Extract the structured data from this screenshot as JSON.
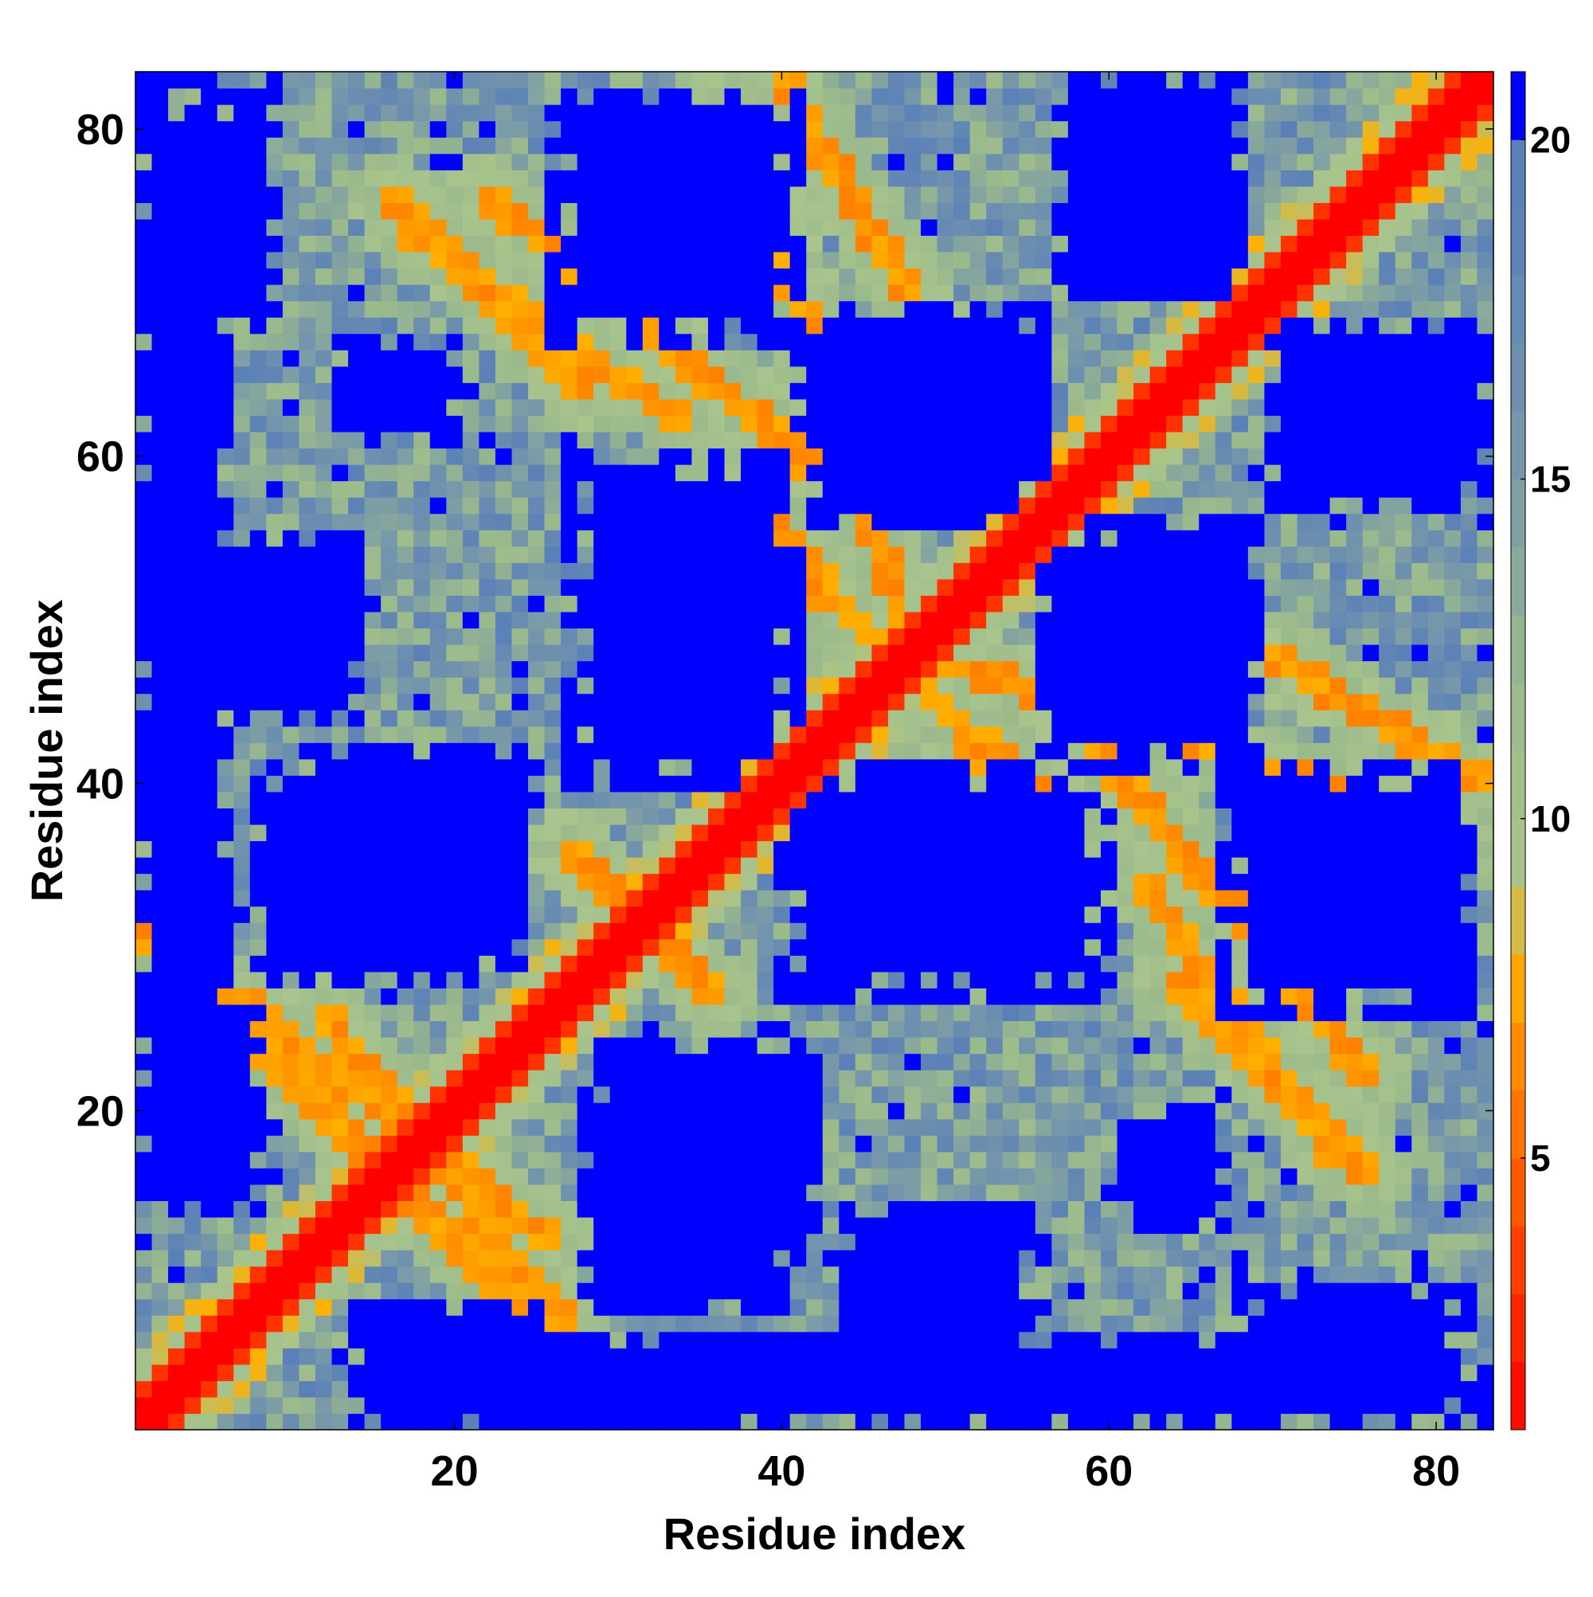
{
  "chart_data": {
    "type": "heatmap",
    "title": "",
    "xlabel": "Residue index",
    "ylabel": "Residue index",
    "x_range": [
      1,
      83
    ],
    "y_range": [
      1,
      83
    ],
    "xticks": [
      20,
      40,
      60,
      80
    ],
    "yticks": [
      20,
      40,
      60,
      80
    ],
    "colorbar": {
      "ticks": [
        5,
        10,
        15,
        20
      ],
      "range": [
        1,
        21
      ],
      "clip_above": 20,
      "color_stops": [
        {
          "value": 1,
          "color": "#ff0000"
        },
        {
          "value": 3,
          "color": "#ff3300"
        },
        {
          "value": 5,
          "color": "#ff6600"
        },
        {
          "value": 7,
          "color": "#ff9900"
        },
        {
          "value": 8,
          "color": "#ffb000"
        },
        {
          "value": 9,
          "color": "#a9c48c"
        },
        {
          "value": 12,
          "color": "#9ab98c"
        },
        {
          "value": 15,
          "color": "#7a9aa8"
        },
        {
          "value": 19,
          "color": "#5a80b8"
        },
        {
          "value": 20,
          "color": "#5a80b8"
        },
        {
          "value": 21,
          "color": "#0000ff"
        }
      ]
    },
    "matrix": {
      "symmetric": true,
      "n": 83,
      "description_values": "Pairwise residue distance (approximate, in units of colorbar)",
      "diagonal_value": 1,
      "helix_bands": [
        {
          "i0": 1,
          "i1": 19,
          "j0": 31,
          "j1": 13,
          "value": 6
        },
        {
          "i0": 17,
          "i1": 34,
          "j0": 74,
          "j1": 62,
          "value": 6
        },
        {
          "i0": 40,
          "i1": 49,
          "j0": 83,
          "j1": 68,
          "value": 6
        },
        {
          "i0": 22,
          "i1": 46,
          "j0": 76,
          "j1": 56,
          "value": 6
        },
        {
          "i0": 37,
          "i1": 58,
          "j0": 57,
          "j1": 37,
          "value": 6
        },
        {
          "i0": 48,
          "i1": 82,
          "j0": 48,
          "j1": 37,
          "value": 6
        },
        {
          "i0": 12,
          "i1": 29,
          "j0": 26,
          "j1": 4,
          "value": 6
        },
        {
          "i0": 64,
          "i1": 76,
          "j0": 28,
          "j1": 16,
          "value": 6
        },
        {
          "i0": 28,
          "i1": 36,
          "j0": 35,
          "j1": 27,
          "value": 6
        }
      ],
      "far_blocks": [
        {
          "x": [
            1,
            6
          ],
          "y": [
            20,
            83
          ],
          "value": 21
        },
        {
          "x": [
            14,
            26
          ],
          "y": [
            1,
            8
          ],
          "value": 21
        },
        {
          "x": [
            28,
            40
          ],
          "y": [
            8,
            21
          ],
          "value": 21
        },
        {
          "x": [
            11,
            24
          ],
          "y": [
            29,
            42
          ],
          "value": 21
        },
        {
          "x": [
            27,
            41
          ],
          "y": [
            40,
            60
          ],
          "value": 21
        },
        {
          "x": [
            26,
            41
          ],
          "y": [
            67,
            82
          ],
          "value": 21
        },
        {
          "x": [
            42,
            57
          ],
          "y": [
            27,
            41
          ],
          "value": 21
        },
        {
          "x": [
            44,
            55
          ],
          "y": [
            57,
            68
          ],
          "value": 21
        },
        {
          "x": [
            56,
            69
          ],
          "y": [
            41,
            56
          ],
          "value": 21
        },
        {
          "x": [
            58,
            68
          ],
          "y": [
            71,
            83
          ],
          "value": 21
        },
        {
          "x": [
            70,
            82
          ],
          "y": [
            27,
            41
          ],
          "value": 21
        },
        {
          "x": [
            70,
            82
          ],
          "y": [
            57,
            68
          ],
          "value": 21
        },
        {
          "x": [
            44,
            55
          ],
          "y": [
            1,
            14
          ],
          "value": 21
        },
        {
          "x": [
            68,
            82
          ],
          "y": [
            1,
            9
          ],
          "value": 21
        },
        {
          "x": [
            13,
            20
          ],
          "y": [
            62,
            67
          ],
          "value": 21
        },
        {
          "x": [
            61,
            67
          ],
          "y": [
            13,
            20
          ],
          "value": 21
        }
      ]
    }
  }
}
